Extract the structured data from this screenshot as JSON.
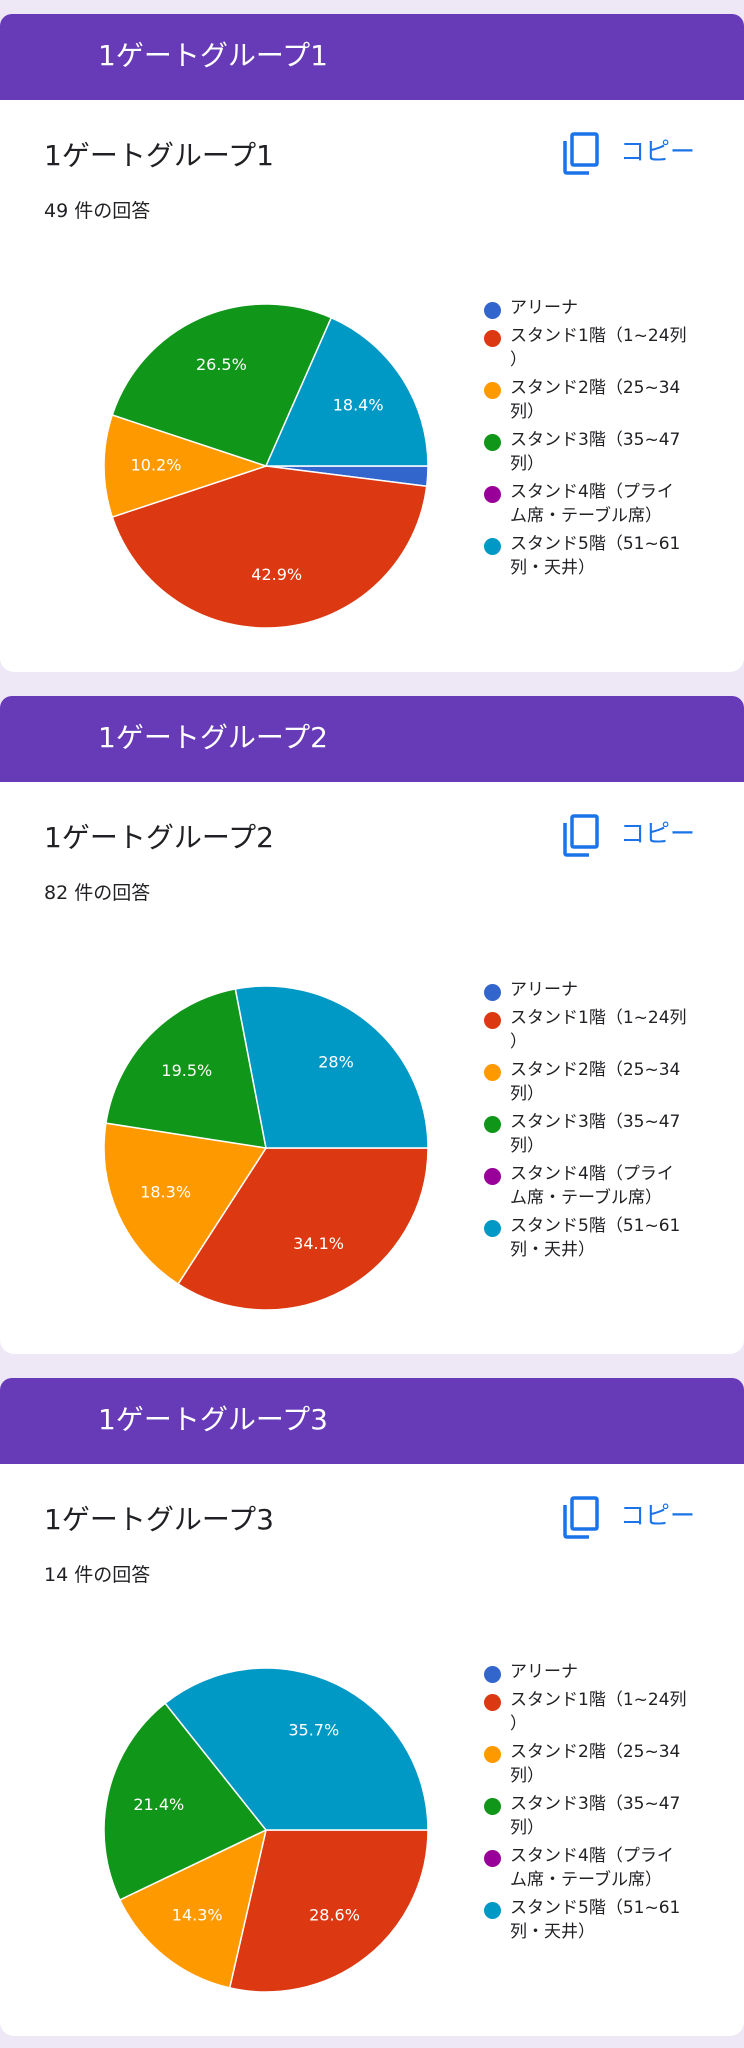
{
  "legend_colors": [
    "#3366cc",
    "#dc3912",
    "#ff9900",
    "#109618",
    "#990099",
    "#0099c6"
  ],
  "sections": [
    {
      "header": "1ゲートグループ1",
      "title": "1ゲートグループ1",
      "response_count": "49 件の回答",
      "copy_label": "コピー",
      "copy_icon": "copy-icon"
    },
    {
      "header": "1ゲートグループ2",
      "title": "1ゲートグループ2",
      "response_count": "82 件の回答",
      "copy_label": "コピー",
      "copy_icon": "copy-icon"
    },
    {
      "header": "1ゲートグループ3",
      "title": "1ゲートグループ3",
      "response_count": "14 件の回答",
      "copy_label": "コピー",
      "copy_icon": "copy-icon"
    }
  ],
  "chart_data": [
    {
      "type": "pie",
      "title": "1ゲートグループ1",
      "categories": [
        "アリーナ",
        "スタンド1階（1~24列）",
        "スタンド2階（25~34列）",
        "スタンド3階（35~47列）",
        "スタンド4階（プライム席・テーブル席）",
        "スタンド5階（51~61列・天井）"
      ],
      "values": [
        2.0,
        42.9,
        10.2,
        26.5,
        0,
        18.4
      ],
      "labels": [
        "",
        "42.9%",
        "10.2%",
        "26.5%",
        "",
        "18.4%"
      ],
      "legend_position": "right"
    },
    {
      "type": "pie",
      "title": "1ゲートグループ2",
      "categories": [
        "アリーナ",
        "スタンド1階（1~24列）",
        "スタンド2階（25~34列）",
        "スタンド3階（35~47列）",
        "スタンド4階（プライム席・テーブル席）",
        "スタンド5階（51~61列・天井）"
      ],
      "values": [
        0,
        34.1,
        18.3,
        19.5,
        0,
        28
      ],
      "labels": [
        "",
        "34.1%",
        "18.3%",
        "19.5%",
        "",
        "28%"
      ],
      "legend_position": "right"
    },
    {
      "type": "pie",
      "title": "1ゲートグループ3",
      "categories": [
        "アリーナ",
        "スタンド1階（1~24列）",
        "スタンド2階（25~34列）",
        "スタンド3階（35~47列）",
        "スタンド4階（プライム席・テーブル席）",
        "スタンド5階（51~61列・天井）"
      ],
      "values": [
        0,
        28.6,
        14.3,
        21.4,
        0,
        35.7
      ],
      "labels": [
        "",
        "28.6%",
        "14.3%",
        "21.4%",
        "",
        "35.7%"
      ],
      "legend_position": "right"
    }
  ]
}
